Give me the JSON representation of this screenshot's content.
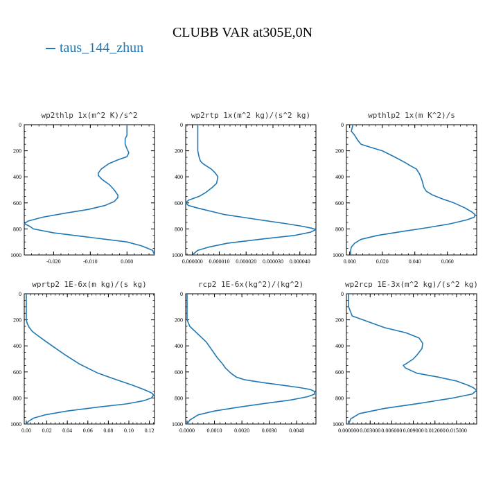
{
  "title": "CLUBB VAR at305E,0N",
  "legend": {
    "label": "taus_144_zhun",
    "color": "#1f77b4"
  },
  "chart_data": [
    {
      "type": "line",
      "title": "wp2thlp  1x(m^2 K)/s^2",
      "xlim": [
        -0.028,
        0.0075
      ],
      "ylim": [
        1000,
        0
      ],
      "xticks": [
        -0.02,
        -0.01,
        0.0
      ],
      "xtick_labels": [
        "-0.020",
        "-0.010",
        "0.000"
      ],
      "yticks": [
        0,
        200,
        400,
        600,
        800,
        1000
      ],
      "series": [
        {
          "x": [
            0.0,
            0.0,
            -0.0005,
            -0.0005,
            0.0,
            0.0005,
            0.0,
            -0.0025,
            -0.005,
            -0.007,
            -0.0078,
            -0.0078,
            -0.0068,
            -0.0048,
            -0.0035,
            -0.0025,
            -0.0025,
            -0.0035,
            -0.006,
            -0.0105,
            -0.017,
            -0.023,
            -0.027,
            -0.028,
            -0.0265,
            -0.0255,
            -0.02,
            -0.01,
            0.0,
            0.004,
            0.007,
            0.0075
          ],
          "y": [
            0,
            80,
            110,
            150,
            185,
            215,
            245,
            270,
            300,
            340,
            370,
            390,
            420,
            460,
            500,
            540,
            560,
            590,
            620,
            650,
            680,
            710,
            740,
            760,
            780,
            800,
            830,
            865,
            900,
            930,
            965,
            1000
          ]
        }
      ]
    },
    {
      "type": "line",
      "title": "wp2rtp  1x(m^2 kg)/(s^2 kg)",
      "xlim": [
        -2.5e-06,
        4.6e-05
      ],
      "ylim": [
        1000,
        0
      ],
      "xticks": [
        0.0,
        1e-05,
        2e-05,
        3e-05,
        4e-05
      ],
      "xtick_labels": [
        "0.000000",
        "0.000010",
        "0.000020",
        "0.000030",
        "0.000040"
      ],
      "yticks": [
        0,
        200,
        400,
        600,
        800,
        1000
      ],
      "series": [
        {
          "x": [
            2e-06,
            2e-06,
            2e-06,
            2.5e-06,
            3e-06,
            4e-06,
            5.5e-06,
            7e-06,
            8.5e-06,
            9.5e-06,
            9e-06,
            7.5e-06,
            5e-06,
            2.5e-06,
            -1.5e-06,
            -2.5e-06,
            -1.5e-06,
            2e-06,
            1.2e-05,
            2.5e-05,
            3.5e-05,
            4.1e-05,
            4.45e-05,
            4.6e-05,
            4.4e-05,
            3.8e-05,
            2.5e-05,
            1.3e-05,
            6e-06,
            2e-06,
            5e-07,
            5e-07
          ],
          "y": [
            0,
            100,
            200,
            250,
            280,
            300,
            320,
            340,
            370,
            400,
            450,
            480,
            520,
            550,
            580,
            600,
            620,
            640,
            690,
            730,
            760,
            780,
            795,
            805,
            825,
            850,
            880,
            910,
            940,
            965,
            990,
            1000
          ]
        }
      ]
    },
    {
      "type": "line",
      "title": "wpthlp2  1x(m K^2)/s",
      "xlim": [
        -0.002,
        0.078
      ],
      "ylim": [
        1000,
        0
      ],
      "xticks": [
        0.0,
        0.02,
        0.04,
        0.06
      ],
      "xtick_labels": [
        "0.000",
        "0.020",
        "0.040",
        "0.060"
      ],
      "yticks": [
        0,
        200,
        400,
        600,
        800,
        1000
      ],
      "series": [
        {
          "x": [
            0.002,
            0.001,
            0.003,
            0.005,
            0.007,
            0.012,
            0.02,
            0.028,
            0.034,
            0.038,
            0.041,
            0.043,
            0.0445,
            0.0455,
            0.047,
            0.051,
            0.057,
            0.064,
            0.071,
            0.075,
            0.077,
            0.0765,
            0.072,
            0.062,
            0.048,
            0.032,
            0.017,
            0.007,
            0.003,
            0.001,
            0.0005,
            0.0005
          ],
          "y": [
            0,
            50,
            80,
            120,
            150,
            170,
            200,
            250,
            290,
            320,
            340,
            380,
            430,
            480,
            510,
            540,
            570,
            600,
            640,
            670,
            690,
            710,
            730,
            760,
            790,
            820,
            850,
            880,
            910,
            940,
            970,
            1000
          ]
        }
      ]
    },
    {
      "type": "line",
      "title": "wprtp2  1E-6x(m kg)/(s kg)",
      "xlim": [
        -0.002,
        0.125
      ],
      "ylim": [
        1000,
        0
      ],
      "xticks": [
        0.0,
        0.02,
        0.04,
        0.06,
        0.08,
        0.1,
        0.12
      ],
      "xtick_labels": [
        "0.00",
        "0.02",
        "0.04",
        "0.06",
        "0.08",
        "0.10",
        "0.12"
      ],
      "yticks": [
        0,
        200,
        400,
        600,
        800,
        1000
      ],
      "series": [
        {
          "x": [
            0.0,
            0.0,
            0.0,
            0.001,
            0.003,
            0.006,
            0.011,
            0.018,
            0.027,
            0.038,
            0.052,
            0.07,
            0.088,
            0.103,
            0.113,
            0.119,
            0.123,
            0.124,
            0.122,
            0.115,
            0.098,
            0.07,
            0.04,
            0.018,
            0.007,
            0.002,
            0.0
          ],
          "y": [
            0,
            100,
            200,
            230,
            260,
            290,
            320,
            360,
            410,
            470,
            540,
            610,
            660,
            700,
            730,
            750,
            765,
            780,
            800,
            820,
            845,
            870,
            900,
            930,
            955,
            980,
            1000
          ]
        }
      ]
    },
    {
      "type": "line",
      "title": "rcp2  1E-6x(kg^2)/(kg^2)",
      "xlim": [
        -5e-05,
        0.0047
      ],
      "ylim": [
        1000,
        0
      ],
      "xticks": [
        0.0,
        0.001,
        0.002,
        0.003,
        0.004
      ],
      "xtick_labels": [
        "0.0000",
        "0.0010",
        "0.0020",
        "0.0030",
        "0.0040"
      ],
      "yticks": [
        0,
        200,
        400,
        600,
        800,
        1000
      ],
      "series": [
        {
          "x": [
            0.0,
            0.0,
            0.0,
            0.0001,
            0.0004,
            0.0007,
            0.0009,
            0.0011,
            0.0013,
            0.0014,
            0.0016,
            0.0018,
            0.0021,
            0.0027,
            0.0034,
            0.0041,
            0.0045,
            0.00465,
            0.00465,
            0.0044,
            0.0038,
            0.0029,
            0.0019,
            0.001,
            0.0004,
            0.0001,
            0.0
          ],
          "y": [
            0,
            100,
            200,
            250,
            310,
            370,
            430,
            490,
            540,
            570,
            610,
            640,
            660,
            680,
            700,
            720,
            735,
            750,
            770,
            790,
            815,
            840,
            870,
            900,
            930,
            970,
            1000
          ]
        }
      ]
    },
    {
      "type": "line",
      "title": "wp2rcp  1E-3x(m^2 kg)/(s^2 kg)",
      "xlim": [
        -0.0003,
        0.0178
      ],
      "ylim": [
        1000,
        0
      ],
      "xticks": [
        0.0,
        0.003,
        0.006,
        0.009,
        0.012,
        0.015
      ],
      "xtick_labels": [
        "0.000000",
        "0.003000",
        "0.006000",
        "0.009000",
        "0.012000",
        "0.015000"
      ],
      "yticks": [
        0,
        200,
        400,
        600,
        800,
        1000
      ],
      "series": [
        {
          "x": [
            0.0,
            0.0,
            0.0005,
            0.002,
            0.005,
            0.008,
            0.0098,
            0.0103,
            0.0102,
            0.0095,
            0.009,
            0.0082,
            0.0076,
            0.0079,
            0.0095,
            0.0125,
            0.015,
            0.0165,
            0.0173,
            0.0178,
            0.0172,
            0.0145,
            0.01,
            0.005,
            0.0015,
            0.0003,
            0.0
          ],
          "y": [
            0,
            100,
            170,
            200,
            260,
            300,
            340,
            380,
            420,
            470,
            500,
            530,
            550,
            570,
            610,
            640,
            670,
            700,
            720,
            740,
            770,
            800,
            840,
            880,
            920,
            960,
            1000
          ]
        }
      ]
    }
  ]
}
